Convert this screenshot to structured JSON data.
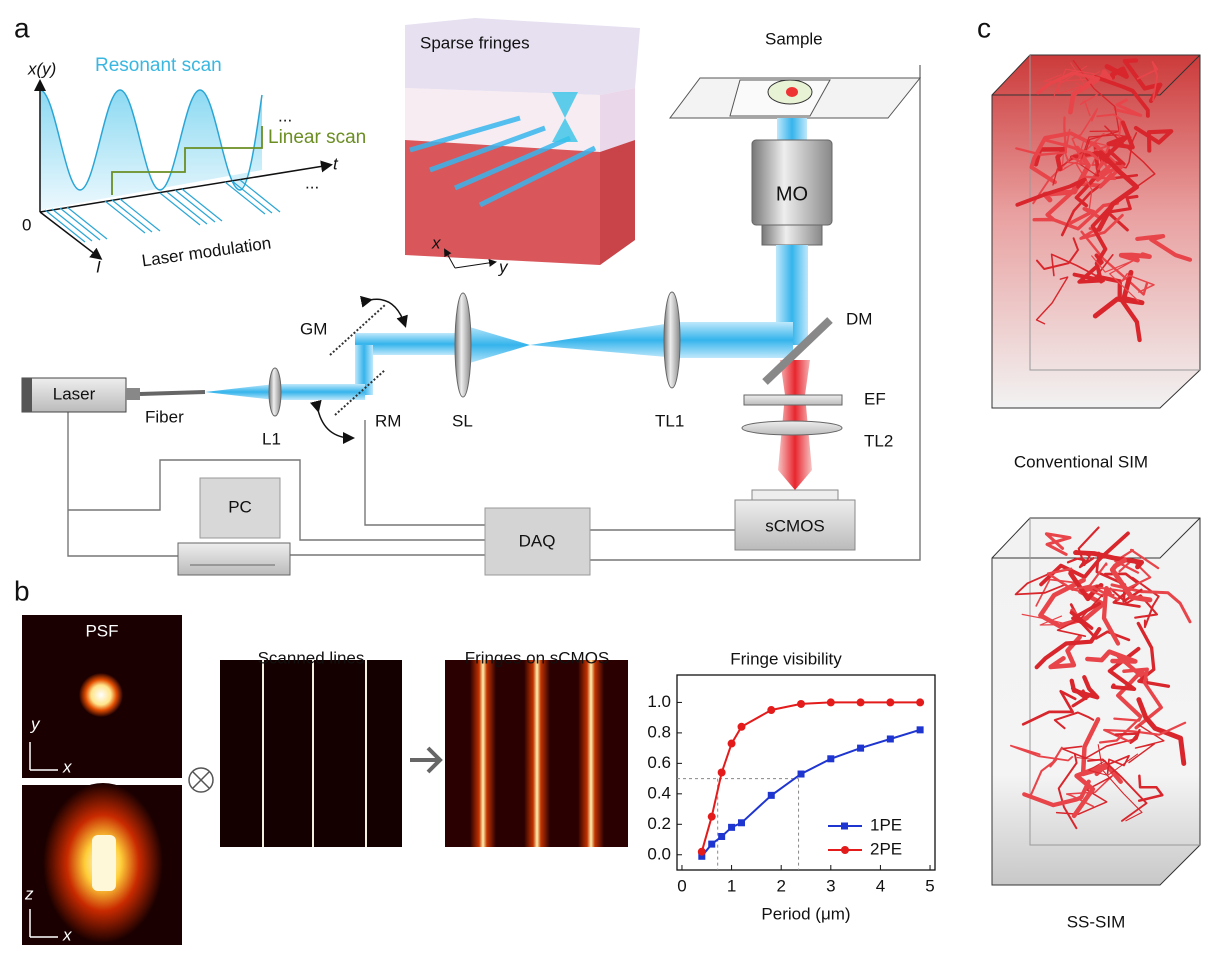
{
  "panel_a": {
    "label": "a",
    "scan_plot": {
      "y_label": "x(y)",
      "resonant": "Resonant scan",
      "linear": "Linear scan",
      "t_label": "t",
      "origin": "0",
      "intensity": "I",
      "modulation": "Laser modulation",
      "ellipsis": [
        "...",
        "..."
      ]
    },
    "fringes": {
      "title": "Sparse fringes",
      "x": "x",
      "y": "y"
    },
    "setup": {
      "sample": "Sample",
      "mo": "MO",
      "dm": "DM",
      "ef": "EF",
      "tl2": "TL2",
      "tl1": "TL1",
      "sl": "SL",
      "rm": "RM",
      "gm": "GM",
      "l1": "L1",
      "fiber": "Fiber",
      "laser": "Laser",
      "pc": "PC",
      "daq": "DAQ",
      "camera": "sCMOS"
    }
  },
  "panel_b": {
    "label": "b",
    "psf": {
      "title": "PSF",
      "y": "y",
      "x_top": "x",
      "z": "z",
      "x_bottom": "x"
    },
    "scanned_title": "Scanned lines",
    "fringes_title": "Fringes on sCMOS"
  },
  "panel_c": {
    "label": "c",
    "top_caption": "Conventional SIM",
    "bottom_caption": "SS-SIM"
  },
  "chart_data": {
    "type": "line",
    "title": "Fringe visibility",
    "x_label": "Period (μm)",
    "xlim": [
      -0.1,
      5.1
    ],
    "ylim": [
      -0.1,
      1.18
    ],
    "xticks": [
      0,
      1,
      2,
      3,
      4,
      5
    ],
    "yticks": [
      {
        "value": 0,
        "label": "0.0"
      },
      {
        "value": 0.2,
        "label": "0.2"
      },
      {
        "value": 0.4,
        "label": "0.4"
      },
      {
        "value": 0.6,
        "label": "0.6"
      },
      {
        "value": 0.8,
        "label": "0.8"
      },
      {
        "value": 1,
        "label": "1.0"
      }
    ],
    "guides": {
      "y": 0.5,
      "x": [
        0.72,
        2.35
      ]
    },
    "series": [
      {
        "name": "1PE",
        "color": "#1f35d0",
        "marker": "square",
        "x": [
          0.4,
          0.6,
          0.8,
          1.0,
          1.2,
          1.8,
          2.4,
          3.0,
          3.6,
          4.2,
          4.8
        ],
        "values": [
          -0.01,
          0.07,
          0.12,
          0.18,
          0.21,
          0.39,
          0.53,
          0.63,
          0.7,
          0.76,
          0.82
        ]
      },
      {
        "name": "2PE",
        "color": "#e41b1b",
        "marker": "circle",
        "x": [
          0.4,
          0.6,
          0.8,
          1.0,
          1.2,
          1.8,
          2.4,
          3.0,
          3.6,
          4.2,
          4.8
        ],
        "values": [
          0.02,
          0.25,
          0.54,
          0.73,
          0.84,
          0.95,
          0.99,
          1.0,
          1.0,
          1.0,
          1.0
        ]
      }
    ]
  }
}
